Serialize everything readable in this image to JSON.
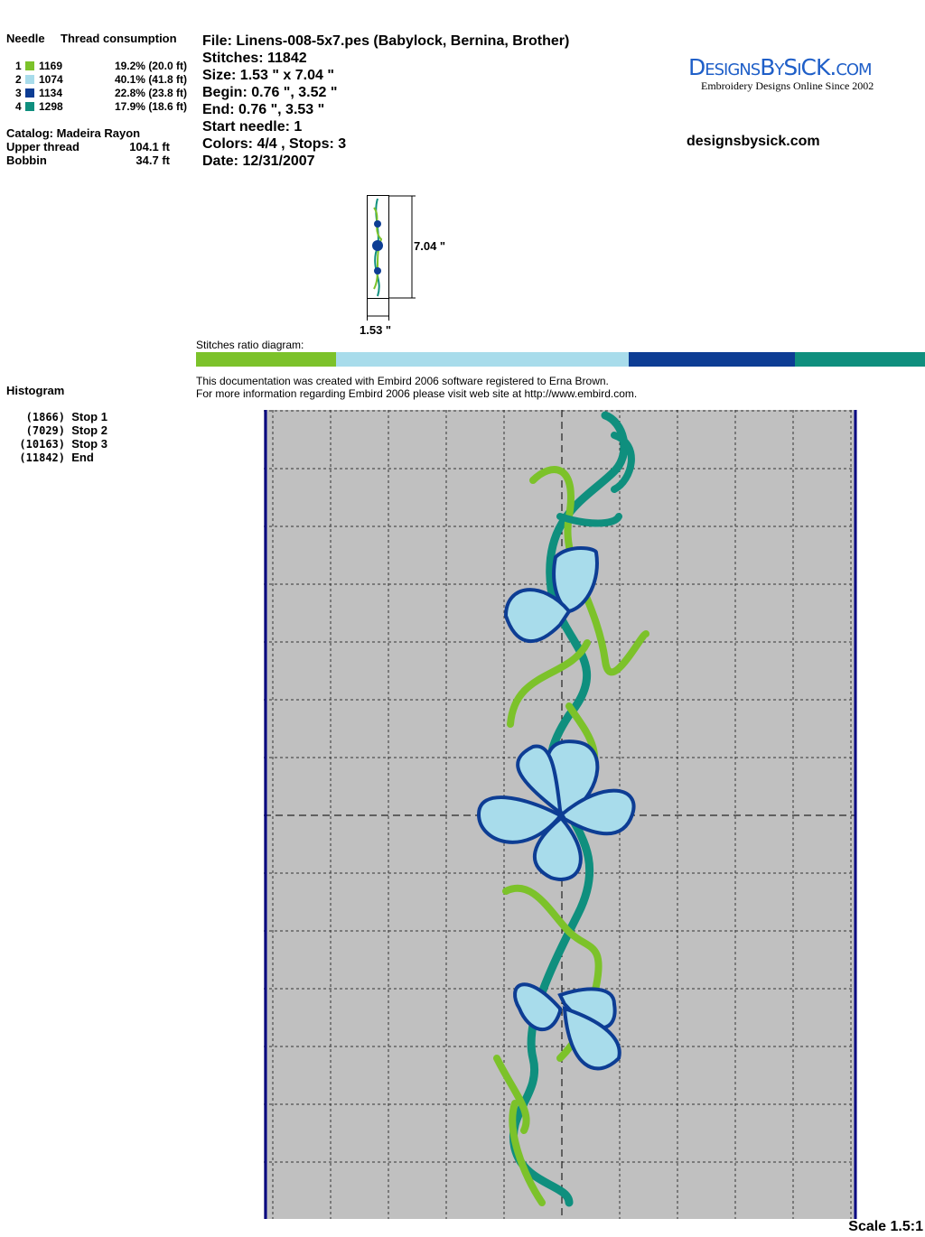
{
  "threads": {
    "header_needle": "Needle",
    "header_consumption": "Thread consumption",
    "items": [
      {
        "n": "1",
        "code": "1169",
        "pct": "19.2% (20.0 ft)",
        "color": "#7cc22a"
      },
      {
        "n": "2",
        "code": "1074",
        "pct": "40.1% (41.8 ft)",
        "color": "#a8dceb"
      },
      {
        "n": "3",
        "code": "1134",
        "pct": "22.8% (23.8 ft)",
        "color": "#0d3d94"
      },
      {
        "n": "4",
        "code": "1298",
        "pct": "17.9% (18.6 ft)",
        "color": "#0f8f7e"
      }
    ],
    "catalog": "Catalog: Madeira Rayon",
    "upper_label": "Upper thread",
    "upper_value": "104.1 ft",
    "bobbin_label": "Bobbin",
    "bobbin_value": "34.7 ft"
  },
  "file": {
    "file": "File: Linens-008-5x7.pes  (Babylock, Bernina, Brother)",
    "stitches": "Stitches: 11842",
    "size": "Size: 1.53 \" x 7.04 \"",
    "begin": "Begin: 0.76 \", 3.52 \"",
    "end": "End: 0.76 \", 3.53 \"",
    "start_needle": "Start needle: 1",
    "colors": "Colors: 4/4 , Stops: 3",
    "date": "Date: 12/31/2007"
  },
  "logo": {
    "text": "DesignsBySiCK.com",
    "tagline": "Embroidery Designs Online Since 2002",
    "url": "designsbysick.com"
  },
  "thumb": {
    "height": "7.04 \"",
    "width": "1.53 \""
  },
  "ratio": {
    "label": "Stitches ratio diagram:",
    "fractions": [
      0.192,
      0.401,
      0.228,
      0.179
    ]
  },
  "notes": [
    "This documentation was created with Embird 2006 software registered to Erna Brown.",
    "For more information regarding Embird 2006 please visit web site at http://www.embird.com."
  ],
  "histogram": {
    "title": "Histogram",
    "items": [
      {
        "count": "(1866)",
        "label": "Stop 1"
      },
      {
        "count": "(7029)",
        "label": "Stop 2"
      },
      {
        "count": "(10163)",
        "label": "Stop 3"
      },
      {
        "count": "(11842)",
        "label": "End"
      }
    ]
  },
  "scale": "Scale 1.5:1"
}
